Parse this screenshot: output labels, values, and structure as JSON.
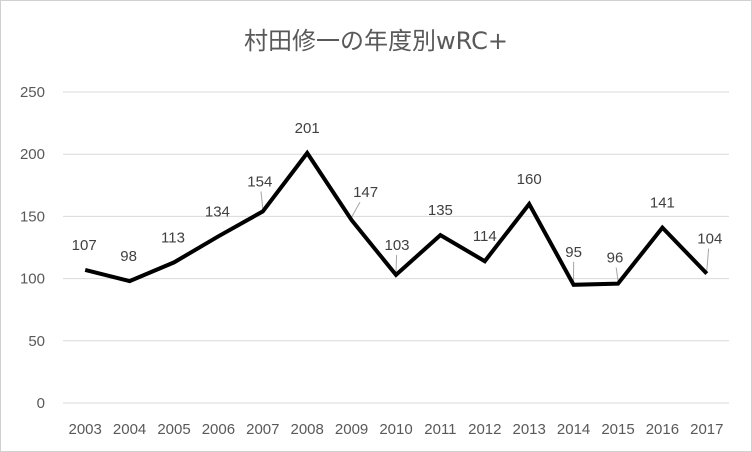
{
  "chart_data": {
    "type": "line",
    "title": "村田修一の年度別wRC+",
    "categories": [
      "2003",
      "2004",
      "2005",
      "2006",
      "2007",
      "2008",
      "2009",
      "2010",
      "2011",
      "2012",
      "2013",
      "2014",
      "2015",
      "2016",
      "2017"
    ],
    "values": [
      107,
      98,
      113,
      134,
      154,
      201,
      147,
      103,
      135,
      114,
      160,
      95,
      96,
      141,
      104
    ],
    "data_labels": [
      "107",
      "98",
      "113",
      "134",
      "154",
      "201",
      "147",
      "103",
      "135",
      "114",
      "160",
      "95",
      "96",
      "141",
      "104"
    ],
    "y_ticks": [
      0,
      50,
      100,
      150,
      200,
      250
    ],
    "y_tick_labels": [
      "0",
      "50",
      "100",
      "150",
      "200",
      "250"
    ],
    "ylim": [
      0,
      250
    ],
    "xlabel": "",
    "ylabel": "",
    "grid": true,
    "legend": "none",
    "line_color": "#000000",
    "grid_color": "#d9d9d9",
    "text_color": "#595959"
  }
}
